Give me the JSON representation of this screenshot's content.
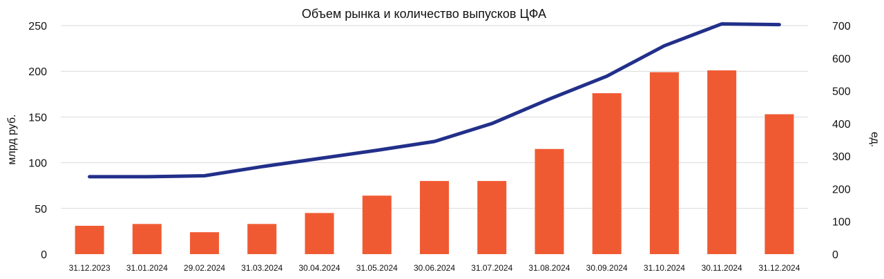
{
  "chart_data": {
    "type": "bar",
    "title": "Объем рынка и количество выпусков ЦФА",
    "categories": [
      "31.12.2023",
      "31.01.2024",
      "29.02.2024",
      "31.03.2024",
      "30.04.2024",
      "31.05.2024",
      "30.06.2024",
      "31.07.2024",
      "31.08.2024",
      "30.09.2024",
      "31.10.2024",
      "30.11.2024",
      "31.12.2024"
    ],
    "ylabel": "млрд руб.",
    "y2label": "ед.",
    "ylim": [
      0,
      250
    ],
    "y2lim": [
      0,
      700
    ],
    "yticks": [
      0,
      50,
      100,
      150,
      200,
      250
    ],
    "y2ticks": [
      0,
      100,
      200,
      300,
      400,
      500,
      600,
      700
    ],
    "grid": true,
    "legend": "none",
    "series": [
      {
        "type": "bar",
        "axis": "left",
        "color": "#f05a32",
        "values": [
          31,
          33,
          24,
          33,
          45,
          64,
          80,
          80,
          115,
          176,
          199,
          201,
          153
        ]
      },
      {
        "type": "line",
        "axis": "right",
        "color": "#22308a",
        "values": [
          237,
          237,
          240,
          268,
          293,
          318,
          345,
          400,
          475,
          545,
          638,
          705,
          703
        ]
      }
    ]
  }
}
